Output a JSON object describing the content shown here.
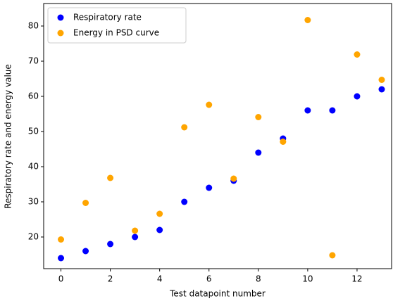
{
  "chart_data": {
    "type": "scatter",
    "x_label": "Test datapoint number",
    "y_label": "Respiratory rate and energy value",
    "x": [
      0,
      1,
      2,
      3,
      4,
      5,
      6,
      7,
      8,
      9,
      10,
      11,
      12,
      13
    ],
    "series": [
      {
        "name": "Respiratory rate",
        "color": "#0000ff",
        "values": [
          14,
          16,
          18,
          20,
          22,
          30,
          34,
          36,
          44,
          48,
          56,
          56,
          60,
          62
        ]
      },
      {
        "name": "Energy in PSD curve",
        "color": "#ffa500",
        "values": [
          19.3,
          29.7,
          36.8,
          21.8,
          26.6,
          51.2,
          57.6,
          36.6,
          54.1,
          47.1,
          81.7,
          14.8,
          71.9,
          64.7
        ]
      }
    ],
    "xlim": [
      -0.7,
      13.4
    ],
    "ylim": [
      11,
      86.4
    ],
    "xticks": [
      0,
      2,
      4,
      6,
      8,
      10,
      12
    ],
    "yticks": [
      20,
      30,
      40,
      50,
      60,
      70,
      80
    ],
    "grid": false,
    "legend_position": "upper-left"
  }
}
